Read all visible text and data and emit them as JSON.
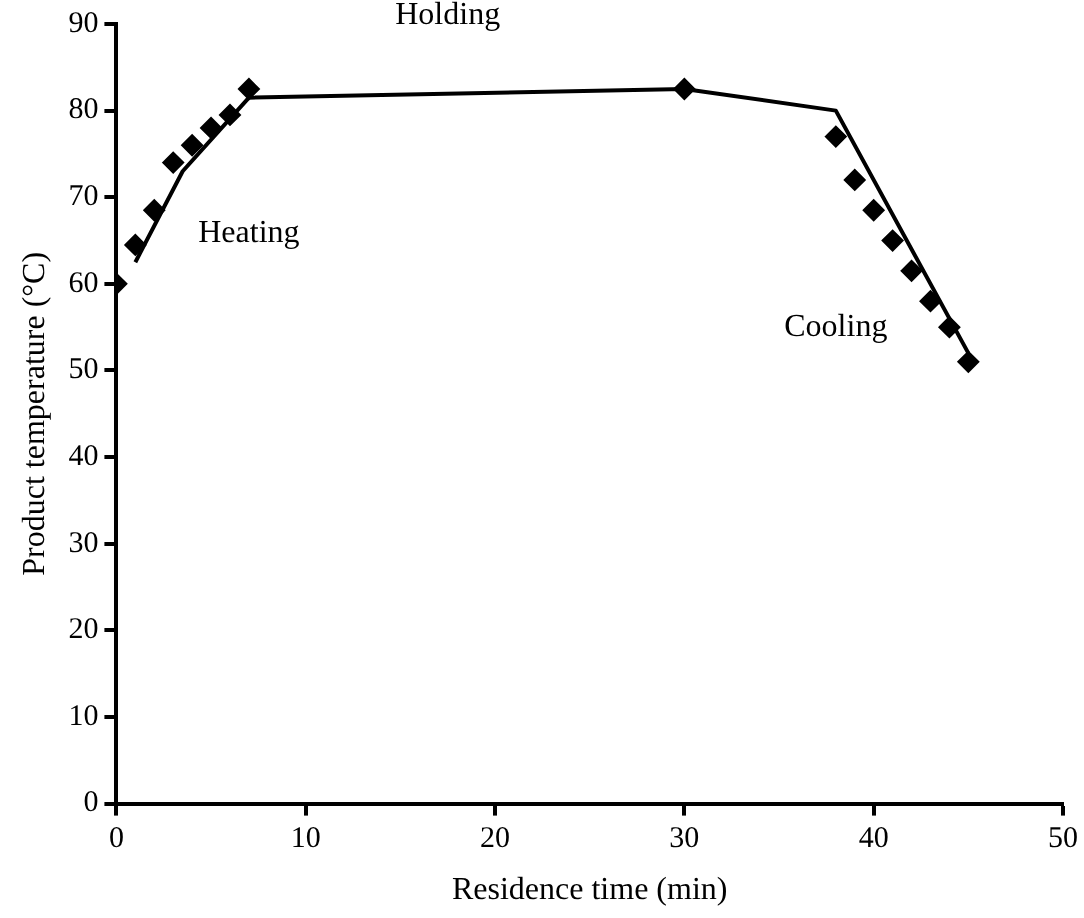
{
  "chart_data": {
    "type": "scatter",
    "xlabel": "Residence time (min)",
    "ylabel": "Product temperature (°C)",
    "xlim": [
      0,
      50
    ],
    "ylim": [
      0,
      90
    ],
    "xticks": [
      0,
      10,
      20,
      30,
      40,
      50
    ],
    "yticks": [
      0,
      10,
      20,
      30,
      40,
      50,
      60,
      70,
      80,
      90
    ],
    "grid": false,
    "legend": false,
    "series": [
      {
        "marker": "diamond",
        "color": "#000000",
        "x": [
          0,
          1,
          2,
          3,
          4,
          5,
          6,
          7,
          30,
          38,
          39,
          40,
          41,
          42,
          43,
          44,
          45
        ],
        "values": [
          60,
          64.5,
          68.5,
          74,
          76,
          78,
          79.5,
          82.5,
          82.5,
          77,
          72,
          68.5,
          65,
          61.5,
          58,
          55,
          51
        ]
      },
      {
        "type": "line",
        "marker": "none",
        "color": "#000000",
        "x": [
          1,
          3.5,
          7,
          30,
          38,
          45
        ],
        "values": [
          62.5,
          73,
          81.5,
          82.5,
          80,
          52
        ]
      }
    ],
    "annotations": [
      "Heating",
      "Holding",
      "Cooling"
    ]
  }
}
